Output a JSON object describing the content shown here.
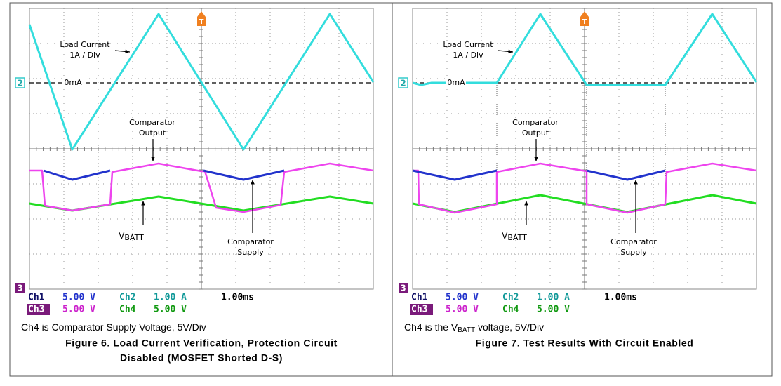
{
  "panels": [
    {
      "screen": {
        "trigger_marker": "T",
        "ch2_marker": "2",
        "ch3_marker": "3",
        "zero_label": "0mA",
        "load_label": [
          "Load Current",
          "1A / Div"
        ],
        "output_label": [
          "Comparator",
          "Output"
        ],
        "vbatt_label": {
          "main": "V",
          "sub": "BATT"
        },
        "supply_label": [
          "Comparator",
          "Supply"
        ]
      },
      "readout": {
        "ch1": "Ch1",
        "ch1_scale": "5.00 V",
        "ch2": "Ch2",
        "ch2_scale": "1.00 A",
        "time": "1.00ms",
        "ch3": "Ch3",
        "ch3_scale": "5.00 V",
        "ch4": "Ch4",
        "ch4_scale": "5.00 V"
      },
      "note": {
        "text": "Ch4 is Comparator Supply Voltage, 5V/Div"
      },
      "caption": [
        "Figure 6. Load Current Verification, Protection Circuit",
        "Disabled (MOSFET Shorted D-S)"
      ]
    },
    {
      "screen": {
        "trigger_marker": "T",
        "ch2_marker": "2",
        "ch3_marker": "3",
        "zero_label": "0mA",
        "load_label": [
          "Load Current",
          "1A / Div"
        ],
        "output_label": [
          "Comparator",
          "Output"
        ],
        "vbatt_label": {
          "main": "V",
          "sub": "BATT"
        },
        "supply_label": [
          "Comparator",
          "Supply"
        ]
      },
      "readout": {
        "ch1": "Ch1",
        "ch1_scale": "5.00 V",
        "ch2": "Ch2",
        "ch2_scale": "1.00 A",
        "time": "1.00ms",
        "ch3": "Ch3",
        "ch3_scale": "5.00 V",
        "ch4": "Ch4",
        "ch4_scale": "5.00 V"
      },
      "note": {
        "text": "Ch4 is the V",
        "sub": "BATT",
        "rest": " voltage, 5V/Div"
      },
      "caption": [
        "Figure 7. Test Results With Circuit Enabled"
      ]
    }
  ]
}
